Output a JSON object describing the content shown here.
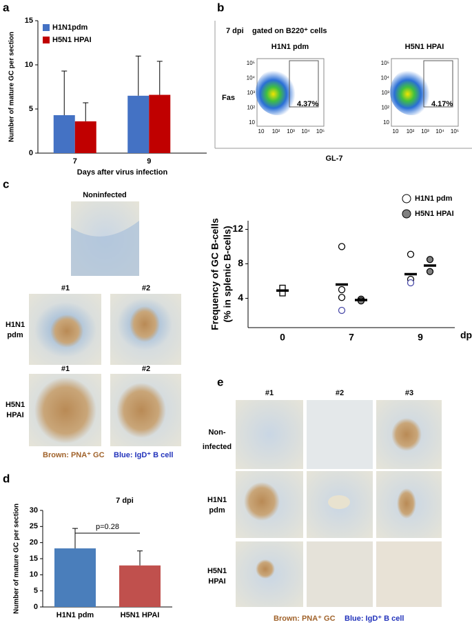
{
  "chart_data": [
    {
      "type": "bar",
      "ylabel": "Number of mature GC per section",
      "xlabel": "Days after virus infection",
      "categories": [
        "7",
        "9"
      ],
      "series": [
        {
          "name": "H1N1pdm",
          "color": "#4472c4",
          "values": [
            4.3,
            6.5
          ],
          "errors": [
            5.0,
            4.5
          ]
        },
        {
          "name": "H5N1 HPAI",
          "color": "#c00000",
          "values": [
            3.6,
            6.6
          ],
          "errors": [
            2.1,
            3.8
          ]
        }
      ],
      "ylim": [
        0,
        15
      ],
      "yticks": [
        0,
        5,
        10,
        15
      ]
    },
    {
      "type": "scatter",
      "ylabel": [
        "Frequency of GC B-cells",
        "(% in splenic B-cells)"
      ],
      "xlabel": "dpi",
      "categories": [
        "0",
        "7",
        "9"
      ],
      "series": [
        {
          "marker": "square",
          "color": "#ffffff",
          "edgecolors": [
            "#000000",
            "#000000"
          ],
          "x": [
            "0",
            "0"
          ],
          "values": [
            5.2,
            4.6
          ],
          "mean": {
            "x": [
              "0"
            ],
            "values": [
              4.9
            ]
          }
        },
        {
          "name": "H1N1 pdm",
          "marker": "circle",
          "color": "#ffffff",
          "edgecolors": [
            "#000000",
            "#000000",
            "#000000",
            "#4a4aa8",
            "#000000",
            "#000000",
            "#4a4aa8"
          ],
          "x": [
            "7",
            "7",
            "7",
            "7",
            "9",
            "9",
            "9"
          ],
          "values": [
            10.0,
            5.0,
            4.1,
            2.6,
            9.1,
            6.2,
            5.8
          ],
          "mean": {
            "x": [
              "7",
              "9"
            ],
            "values": [
              5.6,
              6.8
            ]
          }
        },
        {
          "name": "H5N1 HPAI",
          "marker": "circle",
          "color": "#808080",
          "edgecolors": [
            "#000000",
            "#000000",
            "#000000",
            "#000000"
          ],
          "x": [
            "7",
            "7",
            "9",
            "9"
          ],
          "values": [
            3.9,
            3.7,
            8.5,
            7.1
          ],
          "mean": {
            "x": [
              "7",
              "9"
            ],
            "values": [
              3.8,
              7.8
            ]
          }
        }
      ],
      "ylim": [
        0.6,
        13
      ],
      "yticks": [
        4,
        8,
        12
      ]
    },
    {
      "type": "bar",
      "title": "7 dpi",
      "ylabel": "Number of mature GC per section",
      "categories": [
        "H1N1 pdm",
        "H5N1 HPAI"
      ],
      "series": [
        {
          "colors": [
            "#4a7ebb",
            "#c0504d"
          ],
          "values": [
            18.2,
            12.9
          ],
          "errors": [
            6.2,
            4.5
          ]
        }
      ],
      "annotation": "p=0.28",
      "ylim": [
        0,
        30
      ],
      "yticks": [
        0,
        5,
        10,
        15,
        20,
        25,
        30
      ]
    }
  ],
  "panel_letters": [
    "a",
    "b",
    "c",
    "d",
    "e"
  ],
  "flow": {
    "header": "7 dpi",
    "gate_note": "gated on B220⁺ cells",
    "ylabel": "Fas",
    "xlabel": "GL-7",
    "tick_labels": [
      "10",
      "10²",
      "10³",
      "10⁴",
      "10⁵"
    ],
    "plots": [
      {
        "title": "H1N1 pdm",
        "percent": "4.37%"
      },
      {
        "title": "H5N1 HPAI",
        "percent": "4.17%"
      }
    ]
  },
  "histology_c": {
    "title": "Noninfected",
    "samples": [
      "#1",
      "#2"
    ],
    "rows": [
      [
        "H1N1",
        "pdm"
      ],
      [
        "H5N1",
        "HPAI"
      ]
    ],
    "legend": [
      "Brown: PNA⁺ GC",
      "Blue: IgD⁺ B cell"
    ]
  },
  "histology_e": {
    "columns": [
      "#1",
      "#2",
      "#3"
    ],
    "rows": [
      [
        "Non-",
        "infected"
      ],
      [
        "H1N1",
        "pdm"
      ],
      [
        "H5N1",
        "HPAI"
      ]
    ],
    "legend": [
      "Brown: PNA⁺ GC",
      "Blue: IgD⁺ B cell"
    ]
  }
}
